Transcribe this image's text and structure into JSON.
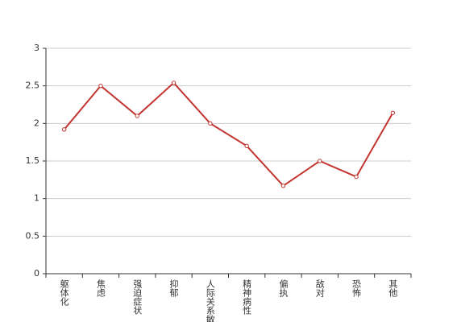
{
  "chart_data": {
    "type": "line",
    "categories": [
      "躯体化",
      "焦虑",
      "强迫症状",
      "抑郁",
      "人际关系敏感",
      "精神病性",
      "偏执",
      "敌对",
      "恐怖",
      "其他"
    ],
    "values": [
      1.92,
      2.5,
      2.1,
      2.54,
      2.0,
      1.7,
      1.17,
      1.5,
      1.29,
      2.14
    ],
    "color": "#c23531",
    "ylim": [
      0,
      3
    ],
    "yticks": [
      0,
      0.5,
      1,
      1.5,
      2,
      2.5,
      3
    ],
    "grid": true
  }
}
